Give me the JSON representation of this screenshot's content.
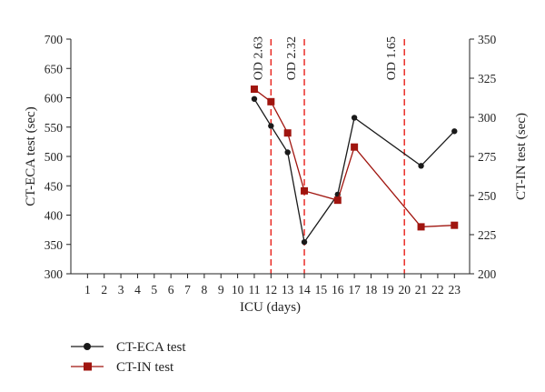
{
  "chart_data": {
    "type": "line",
    "xlabel": "ICU (days)",
    "ylabel_left": "CT-ECA test (sec)",
    "ylabel_right": "CT-IN test (sec)",
    "x_ticks": [
      1,
      2,
      3,
      4,
      5,
      6,
      7,
      8,
      9,
      10,
      11,
      12,
      13,
      14,
      15,
      16,
      17,
      18,
      19,
      20,
      21,
      22,
      23
    ],
    "ylim_left": [
      300,
      700
    ],
    "yticks_left": [
      300,
      350,
      400,
      450,
      500,
      550,
      600,
      650,
      700
    ],
    "ylim_right": [
      200,
      350
    ],
    "yticks_right": [
      200,
      225,
      250,
      275,
      300,
      325,
      350
    ],
    "grid": false,
    "legend_position": "bottom-left",
    "series": [
      {
        "name": "CT-ECA test",
        "axis": "left",
        "color": "#1a1a1a",
        "marker": "circle",
        "x": [
          11,
          12,
          13,
          14,
          16,
          17,
          21,
          23
        ],
        "y": [
          598,
          552,
          507,
          354,
          435,
          566,
          484,
          543
        ]
      },
      {
        "name": "CT-IN test",
        "axis": "right",
        "color": "#a0150f",
        "marker": "square",
        "x": [
          11,
          12,
          13,
          14,
          16,
          17,
          21,
          23
        ],
        "y": [
          318,
          310,
          290,
          253,
          247,
          281,
          230,
          231
        ]
      }
    ],
    "annotations": [
      {
        "x": 12,
        "label": "OD 2.63",
        "color": "#e8201a"
      },
      {
        "x": 14,
        "label": "OD 2.32",
        "color": "#e8201a"
      },
      {
        "x": 20,
        "label": "OD 1.65",
        "color": "#e8201a"
      }
    ]
  }
}
